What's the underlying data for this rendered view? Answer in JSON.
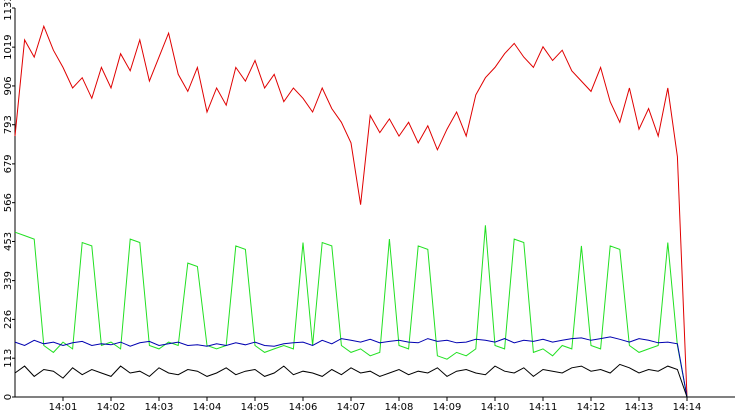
{
  "chart_data": {
    "type": "line",
    "x": [
      0,
      0.2,
      0.4,
      0.6,
      0.8,
      1,
      1.2,
      1.4,
      1.6,
      1.8,
      2,
      2.2,
      2.4,
      2.6,
      2.8,
      3,
      3.2,
      3.4,
      3.6,
      3.8,
      4,
      4.2,
      4.4,
      4.6,
      4.8,
      5,
      5.2,
      5.4,
      5.6,
      5.8,
      6,
      6.2,
      6.4,
      6.6,
      6.8,
      7,
      7.2,
      7.4,
      7.6,
      7.8,
      8,
      8.2,
      8.4,
      8.6,
      8.8,
      9,
      9.2,
      9.4,
      9.6,
      9.8,
      10,
      10.2,
      10.4,
      10.6,
      10.8,
      11,
      11.2,
      11.4,
      11.6,
      11.8,
      12,
      12.2,
      12.4,
      12.6,
      12.8,
      13,
      13.2,
      13.4,
      13.6,
      13.8,
      14
    ],
    "series": [
      {
        "color": "#e00000",
        "values": [
          760,
          1040,
          990,
          1080,
          1010,
          960,
          900,
          930,
          870,
          960,
          900,
          1000,
          950,
          1040,
          920,
          990,
          1060,
          940,
          890,
          960,
          830,
          900,
          850,
          960,
          920,
          980,
          900,
          940,
          860,
          900,
          870,
          830,
          900,
          840,
          800,
          740,
          560,
          820,
          770,
          810,
          760,
          800,
          740,
          790,
          720,
          780,
          830,
          760,
          880,
          930,
          960,
          1000,
          1030,
          990,
          960,
          1020,
          980,
          1010,
          950,
          920,
          890,
          960,
          860,
          800,
          900,
          780,
          840,
          760,
          900,
          700,
          0
        ]
      },
      {
        "color": "#22e022",
        "values": [
          480,
          470,
          460,
          150,
          130,
          160,
          140,
          450,
          440,
          150,
          160,
          140,
          460,
          450,
          150,
          140,
          160,
          150,
          390,
          380,
          150,
          140,
          150,
          440,
          430,
          150,
          130,
          140,
          150,
          140,
          450,
          150,
          450,
          440,
          150,
          130,
          140,
          120,
          130,
          460,
          150,
          140,
          440,
          430,
          120,
          110,
          130,
          120,
          140,
          500,
          150,
          140,
          460,
          450,
          130,
          140,
          120,
          150,
          140,
          440,
          150,
          140,
          440,
          430,
          150,
          130,
          140,
          150,
          450,
          150,
          0
        ]
      },
      {
        "color": "#0000b0",
        "values": [
          160,
          150,
          165,
          155,
          160,
          150,
          158,
          162,
          150,
          155,
          152,
          160,
          148,
          158,
          162,
          150,
          155,
          160,
          150,
          152,
          148,
          155,
          150,
          158,
          152,
          160,
          150,
          148,
          155,
          158,
          160,
          150,
          165,
          155,
          170,
          165,
          160,
          168,
          158,
          162,
          165,
          160,
          158,
          170,
          162,
          165,
          158,
          160,
          168,
          165,
          160,
          170,
          158,
          165,
          162,
          168,
          160,
          165,
          170,
          172,
          165,
          170,
          175,
          168,
          160,
          170,
          165,
          158,
          160,
          155,
          0
        ]
      },
      {
        "color": "#000000",
        "values": [
          70,
          90,
          60,
          80,
          75,
          55,
          85,
          65,
          80,
          70,
          60,
          90,
          70,
          75,
          60,
          85,
          70,
          65,
          80,
          75,
          60,
          70,
          85,
          65,
          75,
          80,
          60,
          70,
          90,
          65,
          75,
          70,
          60,
          80,
          65,
          85,
          70,
          75,
          60,
          70,
          80,
          65,
          75,
          70,
          85,
          60,
          75,
          80,
          70,
          65,
          90,
          75,
          70,
          85,
          60,
          80,
          75,
          70,
          85,
          90,
          75,
          80,
          70,
          95,
          85,
          70,
          80,
          75,
          90,
          80,
          0
        ]
      }
    ],
    "xlim": [
      0,
      15
    ],
    "xticks": [
      {
        "value": 1,
        "label": "14:01"
      },
      {
        "value": 2,
        "label": "14:02"
      },
      {
        "value": 3,
        "label": "14:03"
      },
      {
        "value": 4,
        "label": "14:04"
      },
      {
        "value": 5,
        "label": "14:05"
      },
      {
        "value": 6,
        "label": "14:06"
      },
      {
        "value": 7,
        "label": "14:07"
      },
      {
        "value": 8,
        "label": "14:08"
      },
      {
        "value": 9,
        "label": "14:09"
      },
      {
        "value": 10,
        "label": "14:10"
      },
      {
        "value": 11,
        "label": "14:11"
      },
      {
        "value": 12,
        "label": "14:12"
      },
      {
        "value": 13,
        "label": "14:13"
      },
      {
        "value": 14,
        "label": "14:14"
      }
    ],
    "ylim": [
      0,
      1133
    ],
    "yticks": [
      0,
      113,
      226,
      339,
      453,
      566,
      679,
      793,
      906,
      1019,
      1133
    ]
  }
}
